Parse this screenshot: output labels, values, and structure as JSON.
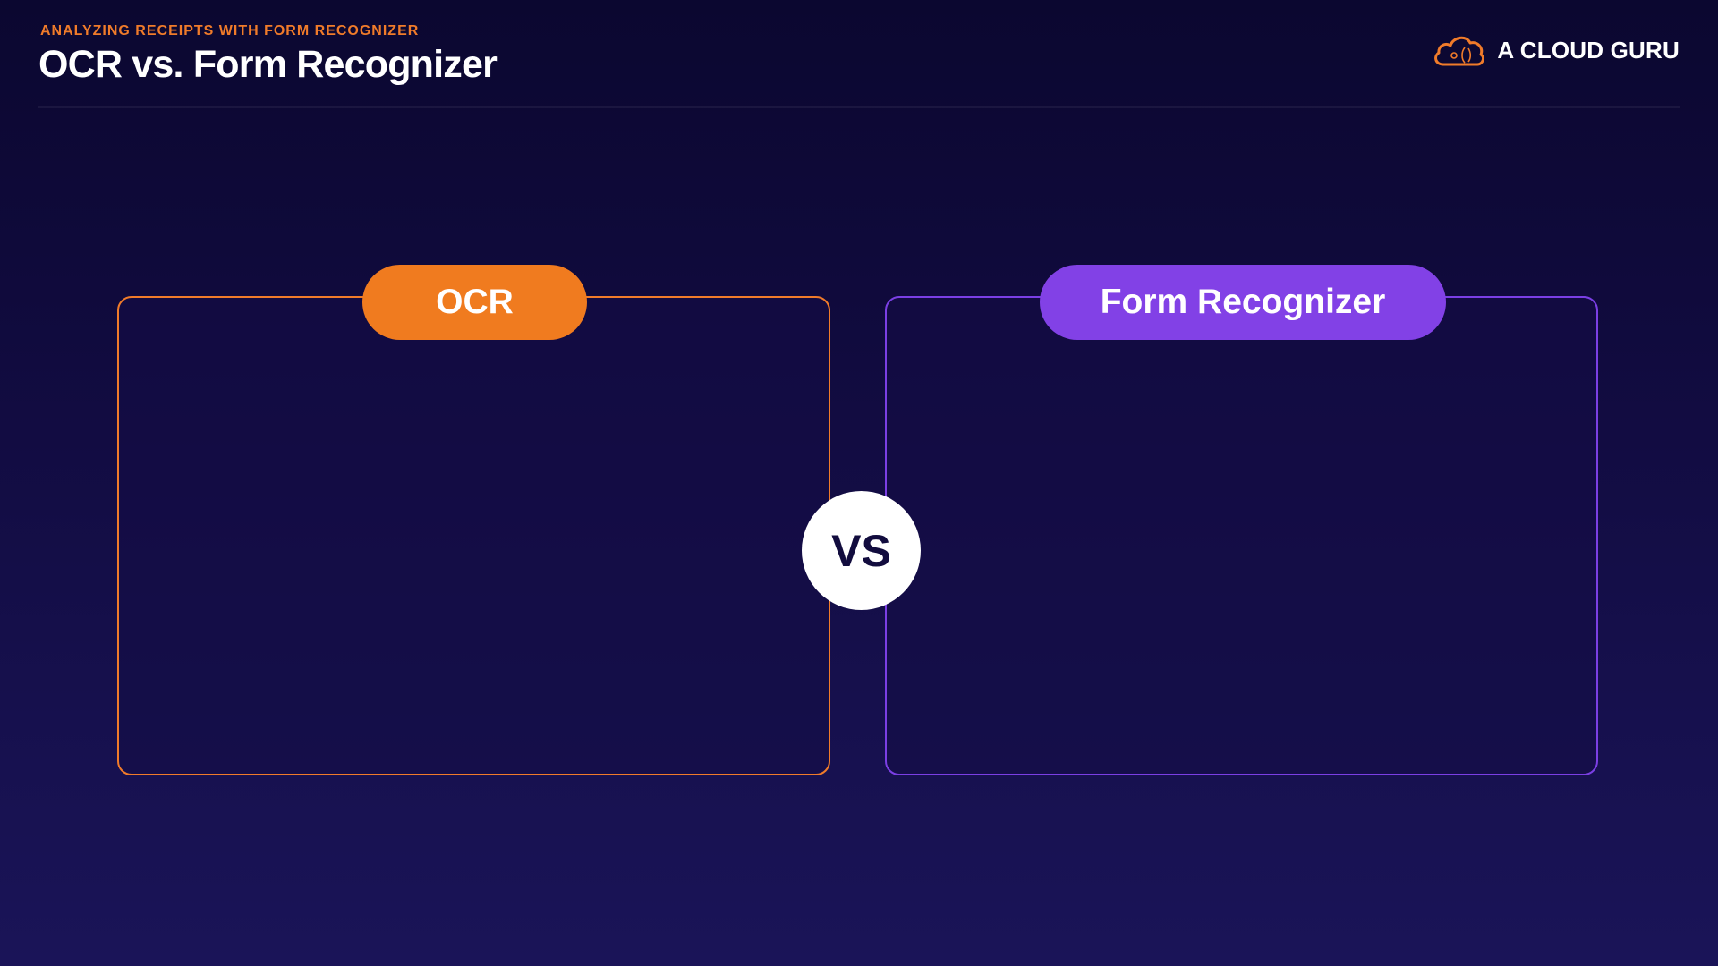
{
  "header": {
    "eyebrow": "ANALYZING RECEIPTS WITH FORM RECOGNIZER",
    "title": "OCR vs. Form Recognizer"
  },
  "logo": {
    "icon": "cloud-logo-icon",
    "text": "A CLOUD GURU"
  },
  "comparison": {
    "left_label": "OCR",
    "right_label": "Form Recognizer",
    "vs_label": "VS"
  },
  "colors": {
    "accent_orange": "#f07b1f",
    "accent_purple": "#8241e6",
    "background": "#120c42"
  }
}
